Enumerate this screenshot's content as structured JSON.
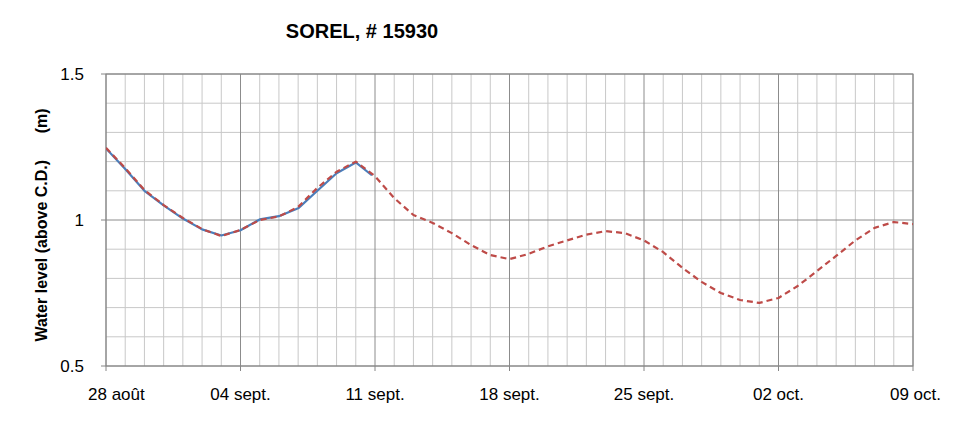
{
  "chart_data": {
    "type": "line",
    "title": "SOREL, # 15930",
    "y_label": "Water level (above C.D.)      (m)",
    "xlim": [
      0,
      42
    ],
    "xticks": [
      {
        "value": 0,
        "label": "28 août"
      },
      {
        "value": 7,
        "label": "04 sept."
      },
      {
        "value": 14,
        "label": "11 sept."
      },
      {
        "value": 21,
        "label": "18 sept."
      },
      {
        "value": 28,
        "label": "25 sept."
      },
      {
        "value": 35,
        "label": "02 oct."
      },
      {
        "value": 42,
        "label": "09 oct."
      }
    ],
    "ylim": [
      0.5,
      1.5
    ],
    "yticks": [
      0.5,
      1,
      1.5
    ],
    "grid": true,
    "series": [
      {
        "color": "#be4b48",
        "line_style": "dashed",
        "x": [
          0,
          1,
          2,
          3,
          4,
          5,
          6,
          7,
          8,
          9,
          10,
          11,
          12,
          13,
          14,
          15,
          16,
          17,
          18,
          19,
          20,
          21,
          22,
          23,
          24,
          25,
          26,
          27,
          28,
          29,
          30,
          31,
          32,
          33,
          34,
          35,
          36,
          37,
          38,
          39,
          40,
          41,
          42
        ],
        "values": [
          1.247,
          1.178,
          1.103,
          1.051,
          1.007,
          0.969,
          0.945,
          0.966,
          1.0,
          1.012,
          1.045,
          1.11,
          1.165,
          1.2,
          1.15,
          1.075,
          1.017,
          0.99,
          0.955,
          0.914,
          0.88,
          0.866,
          0.884,
          0.91,
          0.93,
          0.95,
          0.962,
          0.955,
          0.93,
          0.89,
          0.836,
          0.788,
          0.75,
          0.726,
          0.716,
          0.733,
          0.774,
          0.825,
          0.877,
          0.93,
          0.973,
          0.993,
          0.986
        ]
      },
      {
        "color": "#4a7ebb",
        "line_style": "solid",
        "x": [
          0,
          1,
          2,
          3,
          4,
          5,
          6,
          7,
          8,
          9,
          10,
          11,
          12,
          13,
          13.8
        ],
        "values": [
          1.245,
          1.175,
          1.1,
          1.05,
          1.005,
          0.968,
          0.947,
          0.965,
          1.002,
          1.013,
          1.04,
          1.1,
          1.16,
          1.197,
          1.155
        ]
      }
    ]
  }
}
